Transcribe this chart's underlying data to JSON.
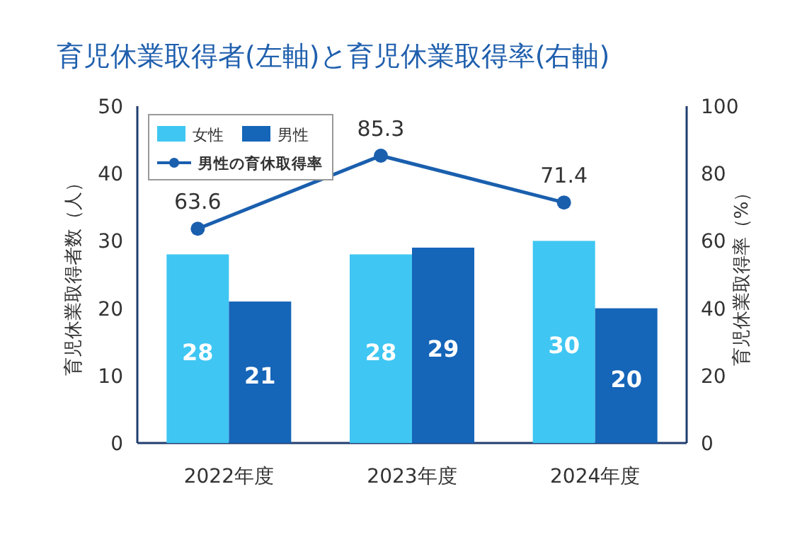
{
  "chart_data": {
    "type": "bar",
    "title": "育児休業取得者(左軸)と育児休業取得率(右軸)",
    "ylabel": "育児休業取得者数（人）",
    "y2label": "育児休業取得率（%）",
    "categories": [
      "2022年度",
      "2023年度",
      "2024年度"
    ],
    "series": [
      {
        "name": "女性",
        "color": "#3fc6f3",
        "values": [
          28,
          28,
          30
        ]
      },
      {
        "name": "男性",
        "color": "#1565b8",
        "values": [
          21,
          29,
          20
        ]
      },
      {
        "name": "男性の育休取得率",
        "type": "line",
        "axis": "y2",
        "color": "#1a5fae",
        "values": [
          63.6,
          85.3,
          71.4
        ]
      }
    ],
    "ylim": [
      0,
      50
    ],
    "yticks": [
      0,
      10,
      20,
      30,
      40,
      50
    ],
    "y2lim": [
      0,
      100
    ],
    "y2ticks": [
      0,
      20,
      40,
      60,
      80,
      100
    ],
    "data_labels": true,
    "legend": "top left",
    "marker": "circle",
    "line_style": "solid",
    "grid": false
  }
}
